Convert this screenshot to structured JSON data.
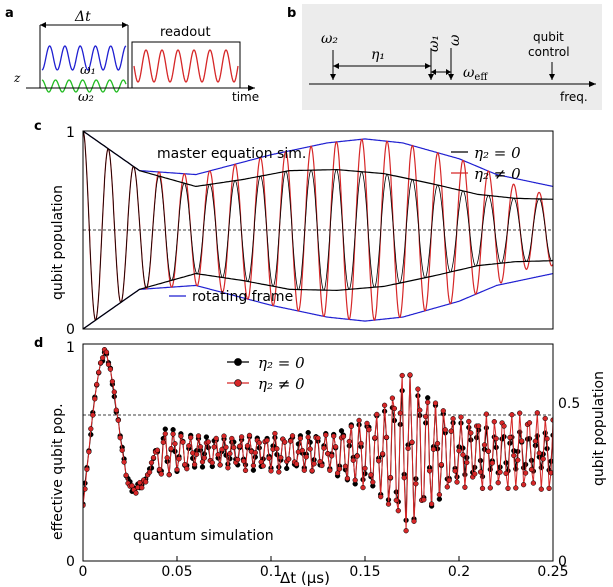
{
  "panels": {
    "a": {
      "label": "a",
      "delta_t": "Δt",
      "readout": "readout",
      "omega1": "ω₁",
      "omega2": "ω₂",
      "z": "z",
      "time": "time"
    },
    "b": {
      "label": "b",
      "omega2": "ω₂",
      "eta1": "η₁",
      "omega1": "ω₁",
      "omega": "ω",
      "omega_eff": "ω",
      "omega_eff_sub": "eff",
      "qubit_control_1": "qubit",
      "qubit_control_2": "control",
      "freq": "freq."
    },
    "c": {
      "label": "c"
    },
    "d": {
      "label": "d"
    }
  },
  "colors": {
    "black": "#000000",
    "red": "#d62728",
    "blue": "#1f1fd1",
    "green": "#22bb22",
    "panel_b_bg": "#ececec"
  },
  "chart_data": [
    {
      "panel": "c",
      "type": "line",
      "title": "master equation sim.",
      "ylabel": "qubit population",
      "ylim": [
        0,
        1
      ],
      "yticks": [
        "0",
        "1"
      ],
      "xlim": [
        0,
        0.25
      ],
      "reference_line": 0.5,
      "legend": [
        {
          "name": "η₂ = 0",
          "color": "#000000"
        },
        {
          "name": "η₂ ≠ 0",
          "color": "#d62728"
        }
      ],
      "annotation": "rotating frame",
      "annotation_color": "#1f1fd1",
      "series": [
        {
          "name": "η₂ = 0",
          "color": "#000000",
          "model": {
            "fast_period": 0.01348,
            "envelope_amp": [
              [
                0,
                0.5
              ],
              [
                0.03,
                0.3
              ],
              [
                0.06,
                0.22
              ],
              [
                0.085,
                0.255
              ],
              [
                0.11,
                0.3
              ],
              [
                0.135,
                0.305
              ],
              [
                0.16,
                0.285
              ],
              [
                0.185,
                0.235
              ],
              [
                0.21,
                0.18
              ],
              [
                0.23,
                0.16
              ],
              [
                0.25,
                0.155
              ]
            ]
          }
        },
        {
          "name": "η₂ ≠ 0",
          "color": "#d62728",
          "model": {
            "fast_period": 0.01348,
            "envelope_amp": [
              [
                0,
                0.5
              ],
              [
                0.03,
                0.3
              ],
              [
                0.06,
                0.28
              ],
              [
                0.1,
                0.38
              ],
              [
                0.13,
                0.44
              ],
              [
                0.15,
                0.46
              ],
              [
                0.17,
                0.44
              ],
              [
                0.2,
                0.36
              ],
              [
                0.22,
                0.28
              ],
              [
                0.235,
                0.2
              ],
              [
                0.25,
                0.18
              ]
            ]
          }
        },
        {
          "name": "rotating frame",
          "color": "#1f1fd1",
          "envelope": "±",
          "model": {
            "envelope_amp": [
              [
                0,
                0.5
              ],
              [
                0.03,
                0.3
              ],
              [
                0.06,
                0.28
              ],
              [
                0.1,
                0.38
              ],
              [
                0.13,
                0.44
              ],
              [
                0.15,
                0.46
              ],
              [
                0.17,
                0.44
              ],
              [
                0.2,
                0.36
              ],
              [
                0.22,
                0.28
              ],
              [
                0.25,
                0.22
              ]
            ]
          }
        }
      ]
    },
    {
      "panel": "d",
      "type": "line",
      "title": "quantum simulation",
      "xlabel": "Δt (µs)",
      "ylabel": "effective qubit pop.",
      "ylabel_right": "qubit population",
      "xlim": [
        0,
        0.25
      ],
      "xticks": [
        "0",
        "0.05",
        "0.1",
        "0.15",
        "0.2",
        "0.25"
      ],
      "ylim": [
        0,
        1
      ],
      "yticks": [
        "0",
        "1"
      ],
      "yticks_right": [
        "0",
        "0.5"
      ],
      "reference_line": 0.5,
      "legend": [
        {
          "name": "η₂ = 0",
          "color": "#000000"
        },
        {
          "name": "η₂ ≠ 0",
          "color": "#d62728"
        }
      ],
      "series": [
        {
          "name": "η₂ = 0",
          "color": "#000000",
          "marker": "circle",
          "model": {
            "fast_period": 0.0045,
            "baseline": 0.5,
            "envelope_amp": [
              [
                0,
                0.45
              ],
              [
                0.012,
                0.46
              ],
              [
                0.03,
                0.15
              ],
              [
                0.06,
                0.06
              ],
              [
                0.1,
                0.07
              ],
              [
                0.13,
                0.08
              ],
              [
                0.145,
                0.14
              ],
              [
                0.16,
                0.2
              ],
              [
                0.175,
                0.35
              ],
              [
                0.185,
                0.25
              ],
              [
                0.2,
                0.12
              ],
              [
                0.22,
                0.09
              ],
              [
                0.25,
                0.08
              ]
            ]
          }
        },
        {
          "name": "η₂ ≠ 0",
          "color": "#d62728",
          "marker": "circle",
          "model": {
            "fast_period": 0.0045,
            "baseline": 0.5,
            "envelope_amp": [
              [
                0,
                0.45
              ],
              [
                0.012,
                0.46
              ],
              [
                0.03,
                0.15
              ],
              [
                0.06,
                0.06
              ],
              [
                0.1,
                0.07
              ],
              [
                0.13,
                0.08
              ],
              [
                0.145,
                0.14
              ],
              [
                0.16,
                0.2
              ],
              [
                0.17,
                0.4
              ],
              [
                0.185,
                0.25
              ],
              [
                0.2,
                0.15
              ],
              [
                0.22,
                0.17
              ],
              [
                0.25,
                0.18
              ]
            ]
          }
        }
      ]
    }
  ]
}
